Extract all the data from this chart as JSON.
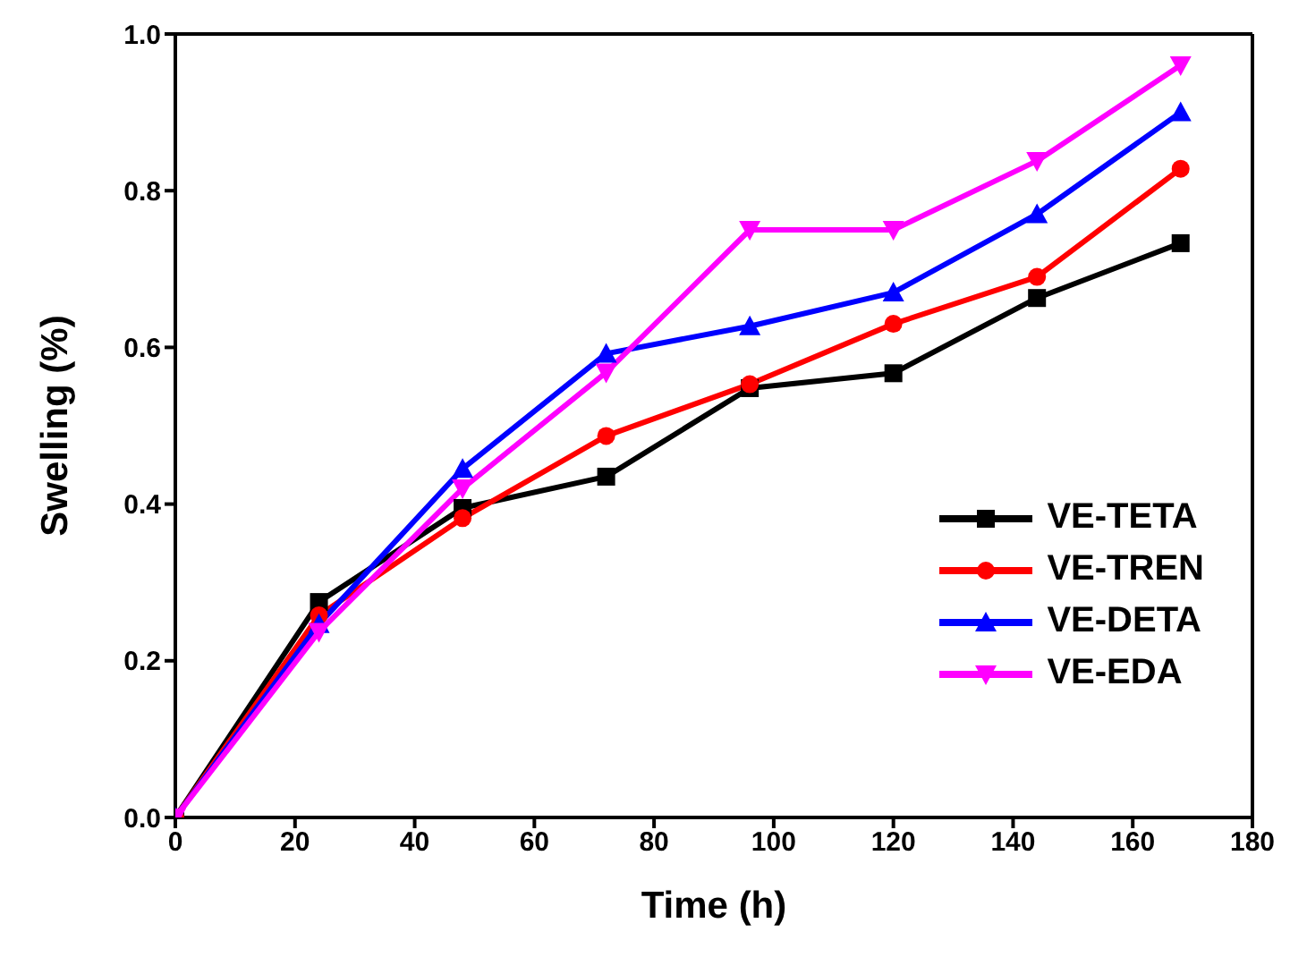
{
  "chart_data": {
    "type": "line",
    "xlabel": "Time (h)",
    "ylabel": "Swelling (%)",
    "x": [
      0,
      24,
      48,
      72,
      96,
      120,
      144,
      168
    ],
    "series": [
      {
        "name": "VE-TETA",
        "color": "#000000",
        "marker": "square",
        "values": [
          0,
          0.275,
          0.395,
          0.435,
          0.548,
          0.567,
          0.663,
          0.733
        ]
      },
      {
        "name": "VE-TREN",
        "color": "#ff0000",
        "marker": "circle",
        "values": [
          0,
          0.258,
          0.382,
          0.487,
          0.553,
          0.63,
          0.69,
          0.828
        ]
      },
      {
        "name": "VE-DETA",
        "color": "#0000ff",
        "marker": "triangle",
        "values": [
          0,
          0.247,
          0.445,
          0.592,
          0.627,
          0.67,
          0.77,
          0.9
        ]
      },
      {
        "name": "VE-EDA",
        "color": "#ff00ff",
        "marker": "triangle-down",
        "values": [
          0,
          0.237,
          0.42,
          0.568,
          0.75,
          0.75,
          0.838,
          0.96
        ]
      }
    ],
    "xlim": [
      0,
      180
    ],
    "xticks": [
      0,
      20,
      40,
      60,
      80,
      100,
      120,
      140,
      160,
      180
    ],
    "ylim": [
      0,
      1.0
    ],
    "yticks": [
      {
        "value": 0,
        "label": "0.0"
      },
      {
        "value": 0.2,
        "label": "0.2"
      },
      {
        "value": 0.4,
        "label": "0.4"
      },
      {
        "value": 0.6,
        "label": "0.6"
      },
      {
        "value": 0.8,
        "label": "0.8"
      },
      {
        "value": 1.0,
        "label": "1.0"
      }
    ],
    "grid": false,
    "legend": "bottom right",
    "line_style": "solid"
  }
}
